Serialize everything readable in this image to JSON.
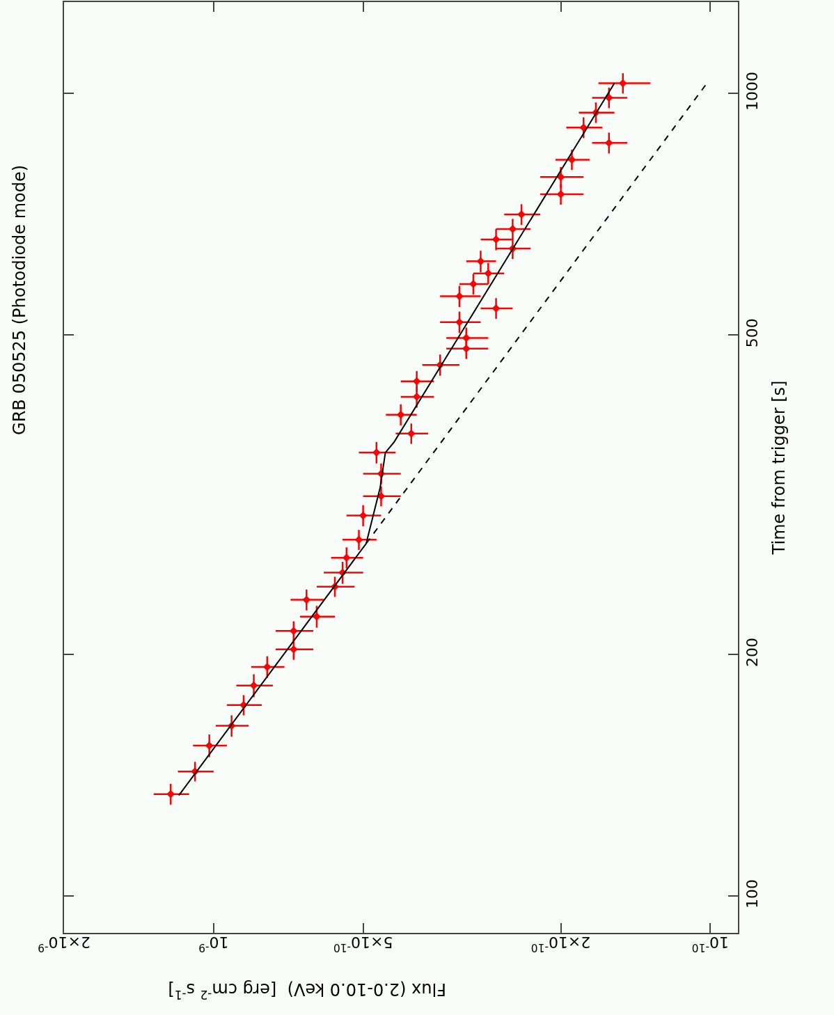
{
  "chart_data": {
    "type": "scatter",
    "title": "GRB 050525 (Photodiode mode)",
    "xlabel": "Flux (2.0-10.0 keV)  [erg cm$^{-2}$ s$^{-1}$]",
    "ylabel": "Time from trigger [s]",
    "log": "xy",
    "grid": false,
    "xlim": [
      2e-09,
      8.8e-11
    ],
    "xticks": [
      {
        "value": 2e-09,
        "label": "2×10$^{-9}$"
      },
      {
        "value": 1e-09,
        "label": "10$^{-9}$"
      },
      {
        "value": 5e-10,
        "label": "5×10$^{-10}$"
      },
      {
        "value": 2e-10,
        "label": "2×10$^{-10}$"
      },
      {
        "value": 1e-10,
        "label": "10$^{-10}$"
      }
    ],
    "ylim": [
      90,
      1300
    ],
    "yticks": [
      100,
      200,
      500,
      1000
    ],
    "series": [
      {
        "color": "#ff0000",
        "marker": "diamond",
        "x": [
          1.22e-09,
          1.09e-09,
          1.02e-09,
          9.2e-10,
          8.7e-10,
          8.3e-10,
          7.8e-10,
          6.9e-10,
          6.9e-10,
          6.2e-10,
          6.5e-10,
          5.7e-10,
          5.5e-10,
          5.4e-10,
          5.1e-10,
          5e-10,
          4.6e-10,
          4.6e-10,
          4.7e-10,
          4e-10,
          4.2e-10,
          3.9e-10,
          3.9e-10,
          3.5e-10,
          3.1e-10,
          3.1e-10,
          3.2e-10,
          2.7e-10,
          3.2e-10,
          3e-10,
          2.8e-10,
          2.9e-10,
          2.5e-10,
          2.7e-10,
          2.5e-10,
          2.4e-10,
          2e-10,
          2e-10,
          1.9e-10,
          1.6e-10,
          1.8e-10,
          1.7e-10,
          1.6e-10,
          1.5e-10
        ],
        "values": [
          134,
          143,
          154,
          163,
          173,
          183,
          193,
          203,
          214,
          223,
          234,
          243,
          253,
          264,
          278,
          298,
          315,
          336,
          357,
          377,
          398,
          419,
          438,
          459,
          481,
          496,
          519,
          540,
          559,
          579,
          597,
          618,
          641,
          658,
          678,
          707,
          749,
          787,
          827,
          868,
          907,
          947,
          988,
          1030
        ],
        "errors": [
          4,
          4,
          5,
          5,
          5,
          6,
          6,
          6,
          6,
          7,
          7,
          7,
          8,
          8,
          8,
          9,
          9,
          10,
          11,
          11,
          12,
          13,
          13,
          14,
          14,
          15,
          16,
          16,
          17,
          17,
          18,
          19,
          19,
          20,
          20,
          21,
          22,
          23,
          24,
          26,
          27,
          28,
          29,
          30
        ],
        "xerrors": [
          1e-10,
          9e-11,
          8e-11,
          7e-11,
          7e-11,
          7e-11,
          6e-11,
          6e-11,
          6e-11,
          5e-11,
          5e-11,
          5e-11,
          5e-11,
          4e-11,
          4e-11,
          4e-11,
          4e-11,
          4e-11,
          4e-11,
          3e-11,
          3e-11,
          3e-11,
          3e-11,
          3e-11,
          3e-11,
          3e-11,
          3e-11,
          2e-11,
          3e-11,
          2e-11,
          2e-11,
          2e-11,
          2e-11,
          2e-11,
          2e-11,
          2e-11,
          2e-11,
          2e-11,
          1.5e-11,
          1.3e-11,
          1.5e-11,
          1.4e-11,
          1.3e-11,
          1.8e-11
        ]
      },
      {
        "type": "line",
        "color": "#000000",
        "line_style": "solid",
        "x": [
          1.175e-09,
          4.93e-10,
          4.62e-10,
          4.51e-10,
          4.33e-10,
          1.56e-10
        ],
        "values": [
          133.5,
          275,
          323,
          357,
          368,
          1030
        ]
      },
      {
        "type": "line",
        "color": "#000000",
        "line_style": "dashed",
        "x": [
          4.93e-10,
          1.016e-10
        ],
        "values": [
          275,
          1030
        ]
      }
    ]
  }
}
